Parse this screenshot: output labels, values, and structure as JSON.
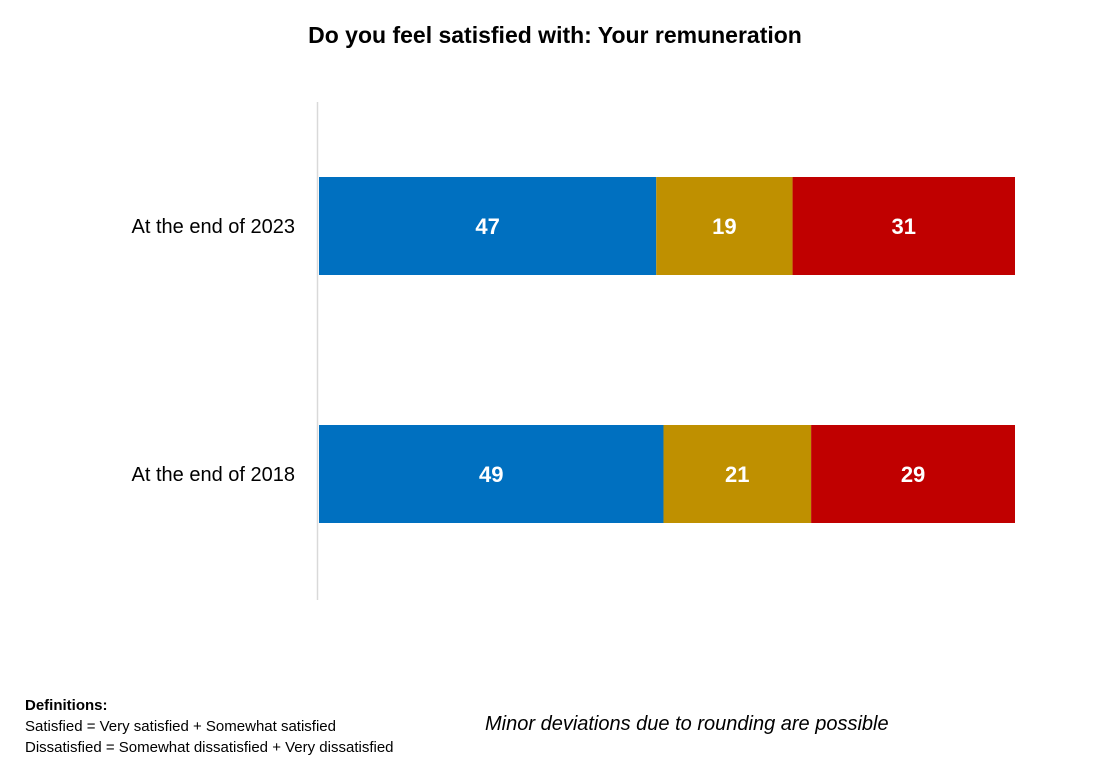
{
  "chart_data": {
    "type": "bar",
    "orientation": "horizontal",
    "stacked": true,
    "title": "Do you feel satisfied with: Your remuneration",
    "categories": [
      "At the end of 2023",
      "At the end of 2018"
    ],
    "series": [
      {
        "values": [
          47,
          49
        ],
        "color": "#0070C0"
      },
      {
        "values": [
          19,
          21
        ],
        "color": "#BF9000"
      },
      {
        "values": [
          31,
          29
        ],
        "color": "#C00000"
      }
    ],
    "data_labels": true,
    "grid": false,
    "legend": "none"
  },
  "footer": {
    "definitions_title": "Definitions:",
    "definition_1": "Satisfied = Very satisfied + Somewhat satisfied",
    "definition_2": "Dissatisfied = Somewhat dissatisfied + Very dissatisfied",
    "note": "Minor deviations due to rounding are possible"
  }
}
